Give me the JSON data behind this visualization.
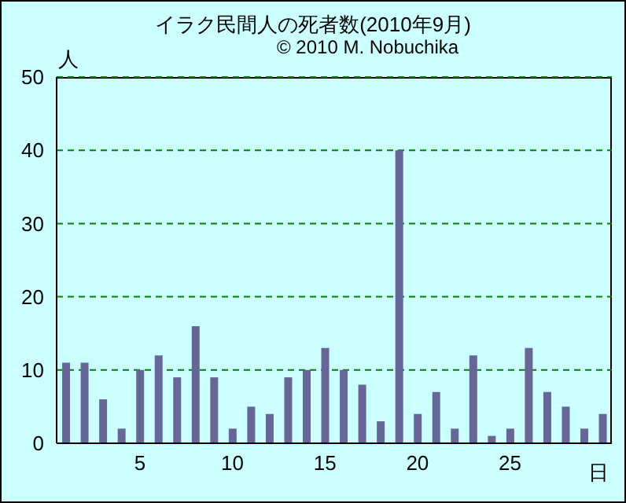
{
  "chart_data": {
    "type": "bar",
    "title": "イラク民間人の死者数(2010年9月)",
    "subtitle": "© 2010 M. Nobuchika",
    "ylabel": "人",
    "xlabel": "日",
    "categories": [
      null,
      null,
      null,
      null,
      "5",
      null,
      null,
      null,
      null,
      "10",
      null,
      null,
      null,
      null,
      "15",
      null,
      null,
      null,
      null,
      "20",
      null,
      null,
      null,
      null,
      "25",
      null,
      null,
      null,
      null,
      null
    ],
    "values": [
      11,
      11,
      6,
      2,
      10,
      12,
      9,
      16,
      9,
      2,
      5,
      4,
      9,
      10,
      13,
      10,
      8,
      3,
      40,
      4,
      7,
      2,
      12,
      1,
      2,
      13,
      7,
      5,
      2,
      4
    ],
    "color": "#666699",
    "ylim": [
      0,
      50
    ],
    "yticks": [
      0,
      10,
      20,
      30,
      40,
      50
    ],
    "grid": "y"
  }
}
